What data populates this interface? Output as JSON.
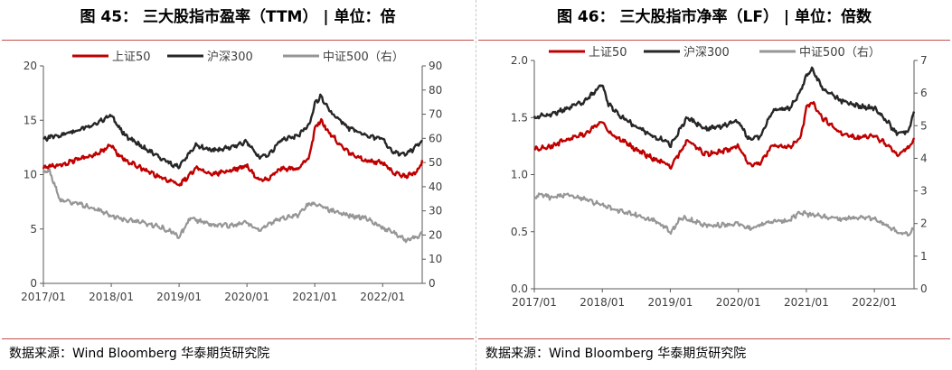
{
  "figures": [
    {
      "title": "图 45：  三大股指市盈率（TTM）  | 单位：倍",
      "source": "数据来源：Wind Bloomberg 华泰期货研究院"
    },
    {
      "title": "图 46：  三大股指市净率（LF）  | 单位：倍数",
      "source": "数据来源：Wind Bloomberg 华泰期货研究院"
    }
  ],
  "chart_data": [
    {
      "type": "line",
      "title": "图 45：  三大股指市盈率（TTM）  | 单位：倍",
      "xlabel": "",
      "ylabel": "",
      "x_ticks": [
        "2017/01",
        "2018/01",
        "2019/01",
        "2020/01",
        "2021/01",
        "2022/01"
      ],
      "xlim": [
        "2017/01",
        "2022/08"
      ],
      "y_left": {
        "lim": [
          0,
          20
        ],
        "ticks": [
          "0",
          "5",
          "10",
          "15",
          "20"
        ]
      },
      "y_right": {
        "lim": [
          0,
          90
        ],
        "ticks": [
          "0",
          "10",
          "20",
          "30",
          "40",
          "50",
          "60",
          "70",
          "80",
          "90"
        ]
      },
      "grid": false,
      "legend_position": "top",
      "series": [
        {
          "name": "上证50",
          "color": "#c00000",
          "axis": "left",
          "x": [
            "2017/01",
            "2017/04",
            "2017/07",
            "2017/10",
            "2018/01",
            "2018/02",
            "2018/04",
            "2018/07",
            "2018/10",
            "2018/12",
            "2019/01",
            "2019/04",
            "2019/07",
            "2019/10",
            "2020/01",
            "2020/03",
            "2020/05",
            "2020/07",
            "2020/10",
            "2020/12",
            "2021/01",
            "2021/02",
            "2021/04",
            "2021/07",
            "2021/10",
            "2022/01",
            "2022/03",
            "2022/05",
            "2022/07",
            "2022/08"
          ],
          "values": [
            10.7,
            10.9,
            11.4,
            11.8,
            12.7,
            11.9,
            11.2,
            10.4,
            9.7,
            9.3,
            9.0,
            10.6,
            10.0,
            10.4,
            10.8,
            9.5,
            9.7,
            10.6,
            10.5,
            11.5,
            14.2,
            15.0,
            13.6,
            12.0,
            11.3,
            11.1,
            10.1,
            9.9,
            10.2,
            11.1
          ]
        },
        {
          "name": "沪深300",
          "color": "#262626",
          "axis": "left",
          "x": [
            "2017/01",
            "2017/04",
            "2017/07",
            "2017/10",
            "2018/01",
            "2018/02",
            "2018/04",
            "2018/07",
            "2018/10",
            "2018/12",
            "2019/01",
            "2019/04",
            "2019/07",
            "2019/10",
            "2020/01",
            "2020/03",
            "2020/05",
            "2020/07",
            "2020/10",
            "2020/12",
            "2021/01",
            "2021/02",
            "2021/04",
            "2021/07",
            "2021/10",
            "2022/01",
            "2022/03",
            "2022/05",
            "2022/07",
            "2022/08"
          ],
          "values": [
            13.3,
            13.6,
            14.1,
            14.6,
            15.5,
            14.5,
            13.4,
            12.4,
            11.4,
            10.9,
            10.7,
            12.7,
            12.2,
            12.5,
            13.0,
            11.6,
            11.9,
            13.2,
            13.5,
            14.6,
            16.5,
            17.2,
            15.7,
            14.3,
            13.6,
            13.3,
            12.0,
            11.8,
            12.6,
            13.2
          ]
        },
        {
          "name": "中证500（右）",
          "color": "#969696",
          "axis": "right",
          "x": [
            "2017/01",
            "2017/02",
            "2017/04",
            "2017/07",
            "2017/10",
            "2018/01",
            "2018/04",
            "2018/07",
            "2018/10",
            "2018/12",
            "2019/01",
            "2019/03",
            "2019/07",
            "2019/10",
            "2020/01",
            "2020/03",
            "2020/07",
            "2020/10",
            "2020/12",
            "2021/01",
            "2021/04",
            "2021/07",
            "2021/10",
            "2022/01",
            "2022/03",
            "2022/05",
            "2022/07",
            "2022/08"
          ],
          "values": [
            46,
            47,
            34,
            33,
            31,
            28,
            26,
            25,
            23,
            21,
            19,
            27,
            24,
            24,
            25,
            22,
            27,
            28,
            33,
            33,
            30,
            28,
            27,
            23,
            21,
            18,
            19,
            21
          ]
        }
      ]
    },
    {
      "type": "line",
      "title": "图 46：  三大股指市净率（LF）  | 单位：倍数",
      "xlabel": "",
      "ylabel": "",
      "x_ticks": [
        "2017/01",
        "2018/01",
        "2019/01",
        "2020/01",
        "2021/01",
        "2022/01"
      ],
      "xlim": [
        "2017/01",
        "2022/08"
      ],
      "y_left": {
        "lim": [
          0,
          2
        ],
        "ticks": [
          "0.0",
          "0.5",
          "1.0",
          "1.5",
          "2.0"
        ]
      },
      "y_right": {
        "lim": [
          0,
          7
        ],
        "ticks": [
          "0",
          "1",
          "2",
          "3",
          "4",
          "5",
          "6",
          "7"
        ]
      },
      "grid": false,
      "legend_position": "top",
      "series": [
        {
          "name": "上证50",
          "color": "#c00000",
          "axis": "left",
          "x": [
            "2017/01",
            "2017/04",
            "2017/07",
            "2017/10",
            "2018/01",
            "2018/02",
            "2018/04",
            "2018/07",
            "2018/10",
            "2018/12",
            "2019/01",
            "2019/04",
            "2019/07",
            "2019/10",
            "2020/01",
            "2020/03",
            "2020/05",
            "2020/07",
            "2020/10",
            "2020/12",
            "2021/01",
            "2021/02",
            "2021/04",
            "2021/07",
            "2021/10",
            "2022/01",
            "2022/03",
            "2022/05",
            "2022/07",
            "2022/08"
          ],
          "values": [
            1.22,
            1.25,
            1.31,
            1.36,
            1.47,
            1.38,
            1.31,
            1.22,
            1.14,
            1.1,
            1.06,
            1.3,
            1.18,
            1.2,
            1.25,
            1.08,
            1.1,
            1.26,
            1.24,
            1.32,
            1.58,
            1.63,
            1.49,
            1.37,
            1.32,
            1.34,
            1.27,
            1.18,
            1.23,
            1.3
          ]
        },
        {
          "name": "沪深300",
          "color": "#262626",
          "axis": "left",
          "x": [
            "2017/01",
            "2017/04",
            "2017/07",
            "2017/10",
            "2018/01",
            "2018/02",
            "2018/04",
            "2018/07",
            "2018/10",
            "2018/12",
            "2019/01",
            "2019/04",
            "2019/07",
            "2019/10",
            "2020/01",
            "2020/03",
            "2020/05",
            "2020/07",
            "2020/10",
            "2020/12",
            "2021/01",
            "2021/02",
            "2021/04",
            "2021/07",
            "2021/10",
            "2022/01",
            "2022/03",
            "2022/05",
            "2022/07",
            "2022/08"
          ],
          "values": [
            1.5,
            1.53,
            1.58,
            1.64,
            1.8,
            1.62,
            1.52,
            1.42,
            1.33,
            1.3,
            1.26,
            1.5,
            1.4,
            1.42,
            1.47,
            1.3,
            1.34,
            1.56,
            1.58,
            1.73,
            1.86,
            1.92,
            1.75,
            1.65,
            1.6,
            1.58,
            1.48,
            1.36,
            1.38,
            1.55
          ]
        },
        {
          "name": "中证500（右）",
          "color": "#969696",
          "axis": "right",
          "x": [
            "2017/01",
            "2017/02",
            "2017/04",
            "2017/07",
            "2017/10",
            "2018/01",
            "2018/04",
            "2018/07",
            "2018/10",
            "2018/12",
            "2019/01",
            "2019/03",
            "2019/07",
            "2019/10",
            "2020/01",
            "2020/03",
            "2020/07",
            "2020/10",
            "2020/12",
            "2021/01",
            "2021/04",
            "2021/07",
            "2021/10",
            "2022/01",
            "2022/03",
            "2022/05",
            "2022/07",
            "2022/08"
          ],
          "values": [
            2.8,
            2.9,
            2.8,
            2.9,
            2.75,
            2.55,
            2.4,
            2.25,
            2.1,
            1.9,
            1.7,
            2.2,
            1.95,
            1.95,
            2.0,
            1.85,
            2.05,
            2.1,
            2.35,
            2.3,
            2.2,
            2.15,
            2.2,
            2.15,
            1.95,
            1.75,
            1.65,
            1.9
          ]
        }
      ]
    }
  ]
}
